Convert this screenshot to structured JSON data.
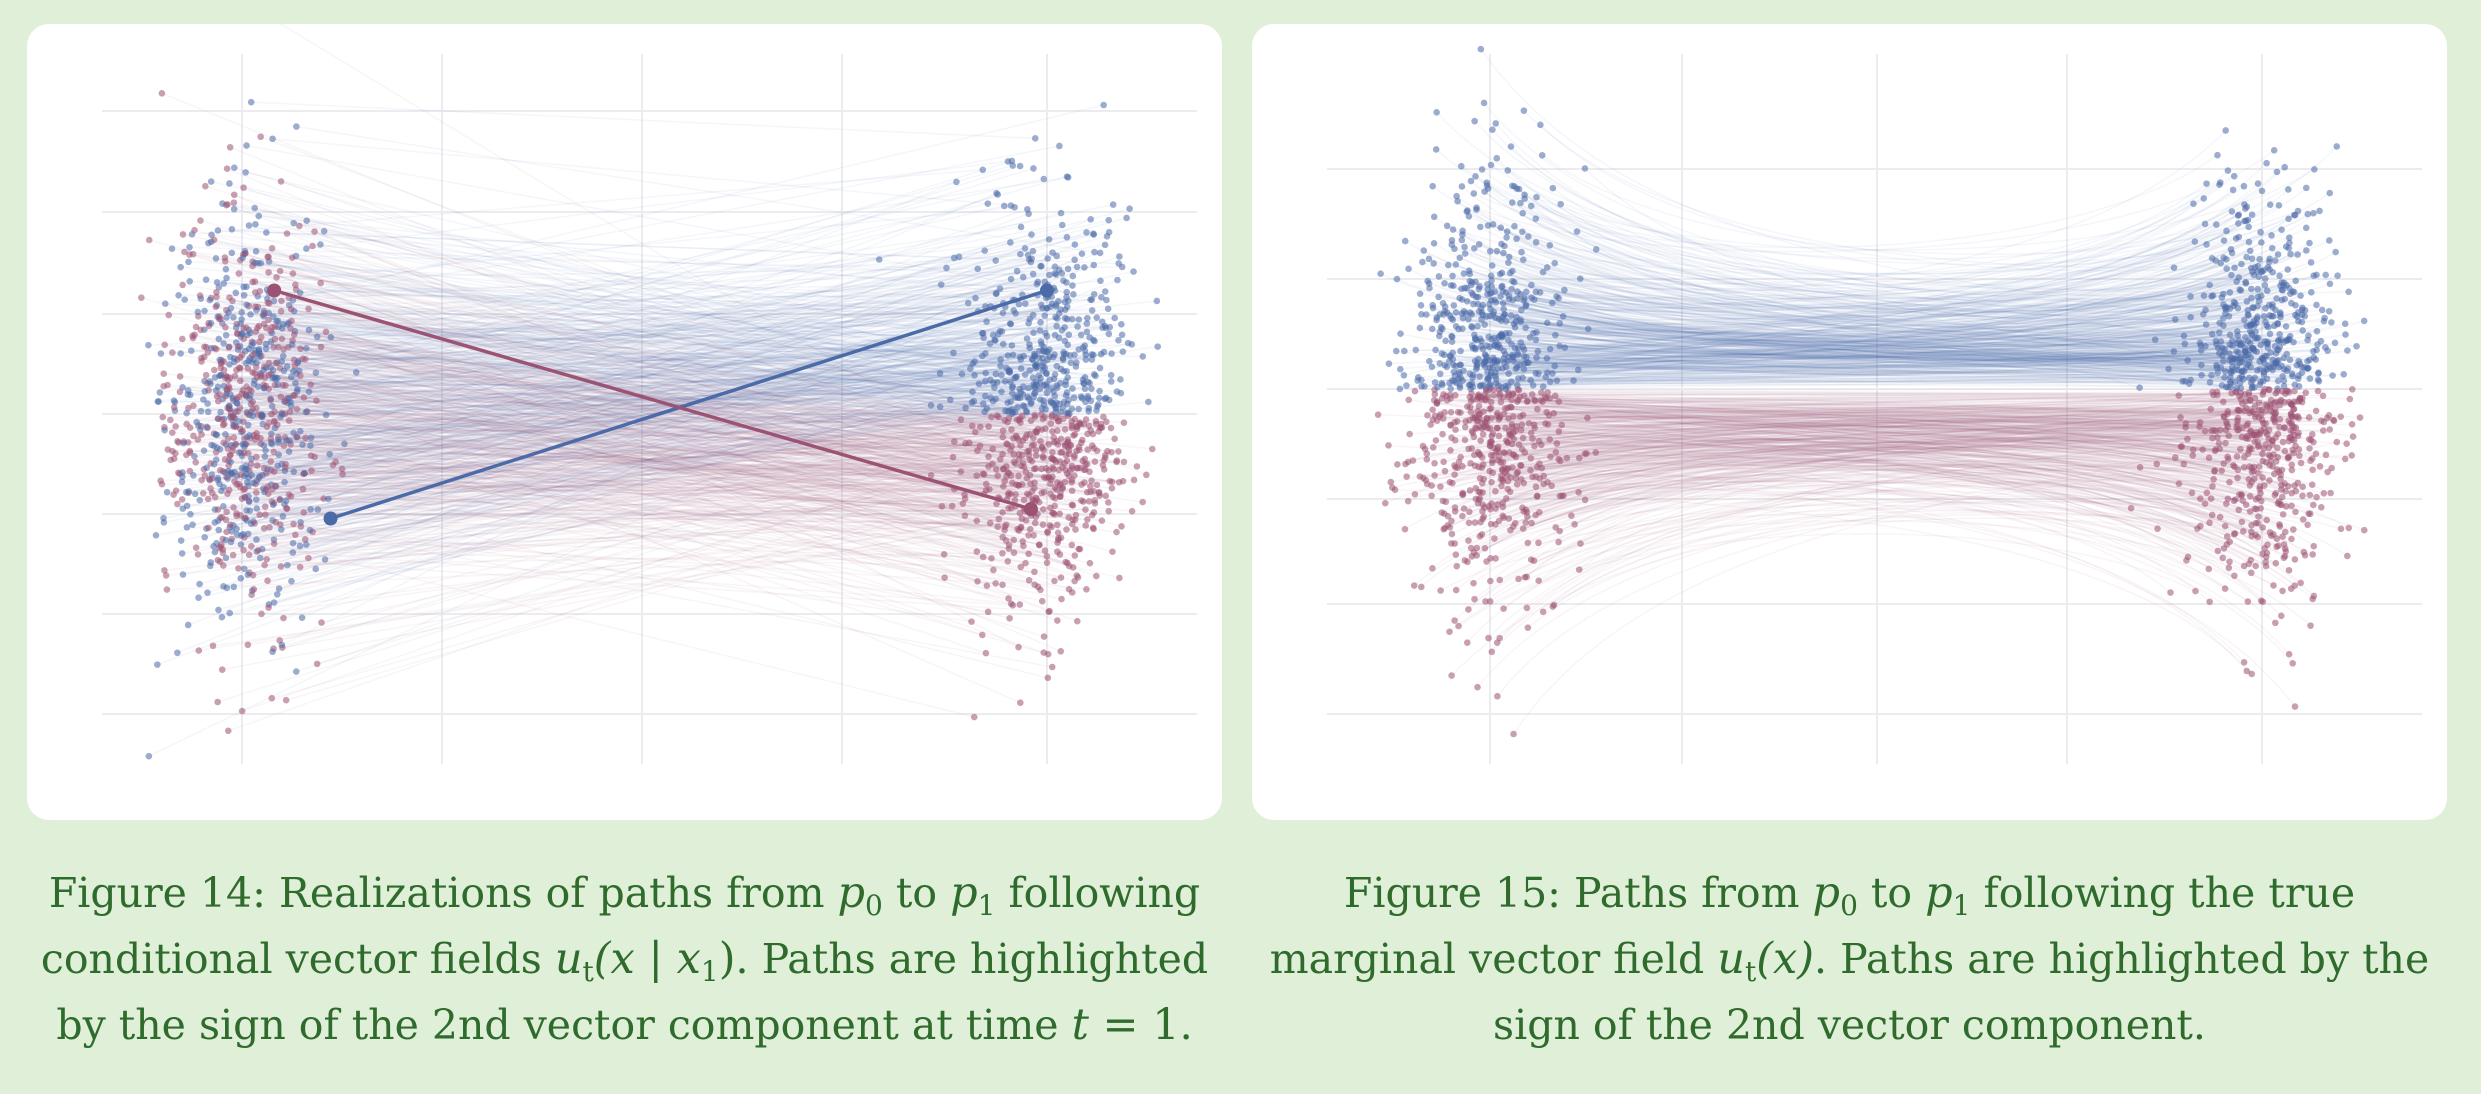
{
  "colors": {
    "page_background": "#dfefd8",
    "panel_background": "#ffffff",
    "caption_text": "#2f6b2c",
    "positive_component": "#4a6aa8",
    "negative_component": "#9c5272",
    "grid": "#ececf0"
  },
  "chart_data": [
    {
      "type": "scatter",
      "title": "",
      "xlabel": "",
      "ylabel": "",
      "xlim": [
        0,
        1
      ],
      "ylim": [
        -3.6,
        3.6
      ],
      "grid": true,
      "legend": "none",
      "series": [
        {
          "color": "#4a6aa8",
          "highlight_rule": "2nd vector component > 0 at t = 1",
          "source_p0": {
            "x_center": 0.0,
            "y_mean": 0.0,
            "y_std": 1.05,
            "x_spread": 0.04
          },
          "target_p1": {
            "x_center": 1.0,
            "y_range": [
              0.0,
              3.1
            ]
          }
        },
        {
          "color": "#9c5272",
          "highlight_rule": "2nd vector component < 0 at t = 1",
          "source_p0": {
            "x_center": 0.0,
            "y_mean": 0.0,
            "y_std": 1.05,
            "x_spread": 0.04
          },
          "target_p1": {
            "x_center": 1.0,
            "y_range": [
              -3.1,
              0.0
            ]
          }
        }
      ],
      "highlighted_paths": [
        {
          "color": "#4a6aa8",
          "from": [
            0.11,
            -1.1
          ],
          "to": [
            1.0,
            1.3
          ]
        },
        {
          "color": "#9c5272",
          "from": [
            0.04,
            1.3
          ],
          "to": [
            0.98,
            -1.0
          ]
        }
      ]
    },
    {
      "type": "scatter",
      "title": "",
      "xlabel": "",
      "ylabel": "",
      "xlim": [
        0,
        1
      ],
      "ylim": [
        -3.6,
        3.6
      ],
      "grid": true,
      "legend": "none",
      "series": [
        {
          "color": "#4a6aa8",
          "highlight_rule": "2nd vector component > 0",
          "source_p0": {
            "x_center": 0.0,
            "y_range": [
              0.0,
              3.1
            ]
          },
          "target_p1": {
            "x_center": 1.0,
            "y_range": [
              0.0,
              3.1
            ]
          }
        },
        {
          "color": "#9c5272",
          "highlight_rule": "2nd vector component < 0",
          "source_p0": {
            "x_center": 0.0,
            "y_range": [
              -3.1,
              0.0
            ]
          },
          "target_p1": {
            "x_center": 1.0,
            "y_range": [
              -3.1,
              0.0
            ]
          }
        }
      ],
      "path_shape": "curves bow toward the center line, flat across middle"
    }
  ],
  "captions": {
    "left": {
      "p1": "Figure 14: Realizations of paths from ",
      "m1": "p",
      "m1s": "0",
      "p2": " to ",
      "m2": "p",
      "m2s": "1",
      "p3": " following conditional vector fields ",
      "m3": "u",
      "m3s": "t",
      "m3r": "(x | x",
      "m3rs": "1",
      "m3end": ")",
      "p4": ". Paths are highlighted by the sign of the 2nd vector component at time ",
      "m4": "t",
      "m4r": " = 1",
      "p5": "."
    },
    "right": {
      "p1": "Figure 15: Paths from ",
      "m1": "p",
      "m1s": "0",
      "p2": " to ",
      "m2": "p",
      "m2s": "1",
      "p3": " following the true marginal vector field ",
      "m3": "u",
      "m3s": "t",
      "m3r": "(x)",
      "p4": ". Paths are highlighted by the sign of the 2nd vector component."
    }
  }
}
